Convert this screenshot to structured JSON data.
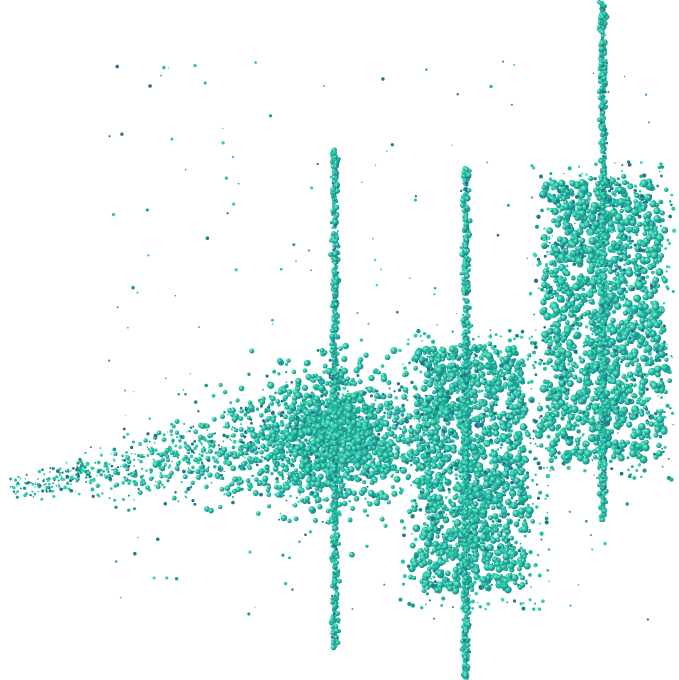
{
  "image": {
    "background": "#ffffff",
    "particle_colors": [
      "#1fb99a",
      "#27c4a4",
      "#2cc9a6",
      "#1a9f8a",
      "#1d7f86",
      "#2b6f8e",
      "#3ad0b0"
    ]
  }
}
